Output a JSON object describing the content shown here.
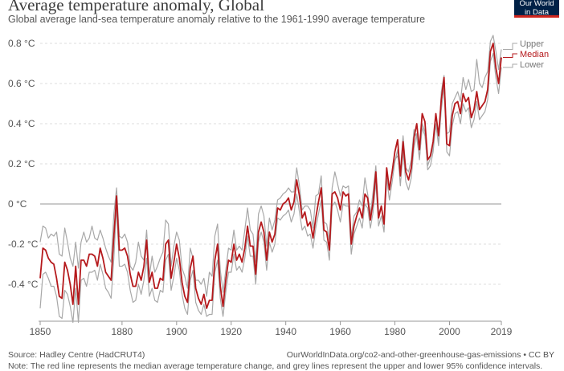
{
  "title": "Average temperature anomaly, Global",
  "subtitle": "Global average land-sea temperature anomaly relative to the 1961-1990 average temperature",
  "logo": {
    "line1": "Our World",
    "line2": "in Data"
  },
  "source": "Source: Hadley Centre (HadCRUT4)",
  "credit": "OurWorldInData.org/co2-and-other-greenhouse-gas-emissions • CC BY",
  "note": "Note: The red line represents the median average temperature change, and grey lines represent the upper and lower 95% confidence intervals.",
  "colors": {
    "median": "#b5191c",
    "bounds": "#a8a8a8",
    "grid": "#dddddd",
    "zero": "#aaaaaa"
  },
  "chart_data": {
    "type": "line",
    "title": "Average temperature anomaly, Global",
    "xlim": [
      1850,
      2019
    ],
    "ylim": [
      -0.6,
      0.85
    ],
    "x_ticks": [
      1850,
      1880,
      1900,
      1920,
      1940,
      1960,
      1980,
      2000,
      2019
    ],
    "y_ticks": [
      {
        "value": -0.4,
        "label": "-0.4 °C"
      },
      {
        "value": -0.2,
        "label": "-0.2 °C"
      },
      {
        "value": 0,
        "label": "0 °C"
      },
      {
        "value": 0.2,
        "label": "0.2 °C"
      },
      {
        "value": 0.4,
        "label": "0.4 °C"
      },
      {
        "value": 0.6,
        "label": "0.6 °C"
      },
      {
        "value": 0.8,
        "label": "0.8 °C"
      }
    ],
    "grid": true,
    "legend": "right-inline",
    "x": [
      1850,
      1851,
      1852,
      1853,
      1854,
      1855,
      1856,
      1857,
      1858,
      1859,
      1860,
      1861,
      1862,
      1863,
      1864,
      1865,
      1866,
      1867,
      1868,
      1869,
      1870,
      1871,
      1872,
      1873,
      1874,
      1875,
      1876,
      1877,
      1878,
      1879,
      1880,
      1881,
      1882,
      1883,
      1884,
      1885,
      1886,
      1887,
      1888,
      1889,
      1890,
      1891,
      1892,
      1893,
      1894,
      1895,
      1896,
      1897,
      1898,
      1899,
      1900,
      1901,
      1902,
      1903,
      1904,
      1905,
      1906,
      1907,
      1908,
      1909,
      1910,
      1911,
      1912,
      1913,
      1914,
      1915,
      1916,
      1917,
      1918,
      1919,
      1920,
      1921,
      1922,
      1923,
      1924,
      1925,
      1926,
      1927,
      1928,
      1929,
      1930,
      1931,
      1932,
      1933,
      1934,
      1935,
      1936,
      1937,
      1938,
      1939,
      1940,
      1941,
      1942,
      1943,
      1944,
      1945,
      1946,
      1947,
      1948,
      1949,
      1950,
      1951,
      1952,
      1953,
      1954,
      1955,
      1956,
      1957,
      1958,
      1959,
      1960,
      1961,
      1962,
      1963,
      1964,
      1965,
      1966,
      1967,
      1968,
      1969,
      1970,
      1971,
      1972,
      1973,
      1974,
      1975,
      1976,
      1977,
      1978,
      1979,
      1980,
      1981,
      1982,
      1983,
      1984,
      1985,
      1986,
      1987,
      1988,
      1989,
      1990,
      1991,
      1992,
      1993,
      1994,
      1995,
      1996,
      1997,
      1998,
      1999,
      2000,
      2001,
      2002,
      2003,
      2004,
      2005,
      2006,
      2007,
      2008,
      2009,
      2010,
      2011,
      2012,
      2013,
      2014,
      2015,
      2016,
      2017,
      2018,
      2019
    ],
    "series": [
      {
        "name": "Upper",
        "values": [
          -0.19,
          -0.11,
          -0.12,
          -0.17,
          -0.15,
          -0.16,
          -0.14,
          -0.25,
          -0.26,
          -0.12,
          -0.19,
          -0.27,
          -0.31,
          -0.19,
          -0.32,
          -0.19,
          -0.14,
          -0.19,
          -0.17,
          -0.11,
          -0.17,
          -0.18,
          -0.13,
          -0.17,
          -0.22,
          -0.26,
          -0.29,
          -0.05,
          0.08,
          -0.16,
          -0.17,
          -0.15,
          -0.19,
          -0.31,
          -0.33,
          -0.29,
          -0.19,
          -0.26,
          -0.28,
          -0.13,
          -0.36,
          -0.26,
          -0.34,
          -0.31,
          -0.27,
          -0.24,
          -0.08,
          -0.1,
          -0.31,
          -0.21,
          -0.14,
          -0.18,
          -0.32,
          -0.36,
          -0.42,
          -0.22,
          -0.27,
          -0.38,
          -0.38,
          -0.4,
          -0.37,
          -0.46,
          -0.34,
          -0.36,
          -0.16,
          -0.1,
          -0.33,
          -0.44,
          -0.33,
          -0.22,
          -0.23,
          -0.13,
          -0.23,
          -0.21,
          -0.23,
          -0.13,
          -0.02,
          -0.13,
          -0.15,
          -0.29,
          -0.05,
          -0.01,
          -0.06,
          -0.21,
          -0.07,
          -0.13,
          -0.08,
          0.02,
          0.03,
          0.05,
          0.06,
          0.08,
          0.06,
          0.06,
          0.18,
          0.09,
          -0.03,
          -0.01,
          -0.01,
          -0.03,
          -0.12,
          0.04,
          0.05,
          0.14,
          -0.09,
          -0.1,
          -0.18,
          0.08,
          0.16,
          0.1,
          0.04,
          0.09,
          0.08,
          0.09,
          -0.17,
          -0.06,
          -0.04,
          0.02,
          -0.01,
          0.13,
          0.05,
          -0.05,
          0.06,
          0.19,
          -0.05,
          -0.01,
          -0.09,
          0.11,
          0.09,
          0.15,
          0.22,
          0.24,
          0.17,
          0.34,
          0.18,
          0.16,
          0.22,
          0.37,
          0.33,
          0.23,
          0.38,
          0.34,
          0.19,
          0.23,
          0.28,
          0.4,
          0.3,
          0.56,
          0.64,
          0.35,
          0.36,
          0.5,
          0.53,
          0.56,
          0.51,
          0.63,
          0.57,
          0.62,
          0.56,
          0.57,
          0.72,
          0.6,
          0.58,
          0.63,
          0.66,
          0.81,
          0.84,
          0.76,
          0.67,
          0.77
        ]
      },
      {
        "name": "Median",
        "values": [
          -0.37,
          -0.22,
          -0.23,
          -0.27,
          -0.29,
          -0.3,
          -0.37,
          -0.46,
          -0.47,
          -0.29,
          -0.33,
          -0.4,
          -0.5,
          -0.31,
          -0.5,
          -0.28,
          -0.28,
          -0.31,
          -0.25,
          -0.25,
          -0.26,
          -0.31,
          -0.22,
          -0.27,
          -0.34,
          -0.36,
          -0.38,
          -0.16,
          0.04,
          -0.23,
          -0.23,
          -0.22,
          -0.26,
          -0.35,
          -0.41,
          -0.41,
          -0.34,
          -0.38,
          -0.31,
          -0.18,
          -0.39,
          -0.34,
          -0.42,
          -0.42,
          -0.37,
          -0.38,
          -0.2,
          -0.18,
          -0.37,
          -0.29,
          -0.2,
          -0.27,
          -0.39,
          -0.46,
          -0.49,
          -0.32,
          -0.26,
          -0.42,
          -0.47,
          -0.5,
          -0.45,
          -0.52,
          -0.48,
          -0.48,
          -0.28,
          -0.2,
          -0.41,
          -0.51,
          -0.38,
          -0.28,
          -0.29,
          -0.2,
          -0.28,
          -0.25,
          -0.29,
          -0.22,
          -0.11,
          -0.21,
          -0.21,
          -0.35,
          -0.14,
          -0.09,
          -0.14,
          -0.28,
          -0.14,
          -0.19,
          -0.15,
          -0.02,
          -0.03,
          0.0,
          0.01,
          0.03,
          -0.03,
          0.01,
          0.12,
          0.04,
          -0.07,
          -0.04,
          -0.11,
          -0.09,
          -0.17,
          -0.07,
          0.01,
          0.08,
          -0.13,
          -0.14,
          -0.23,
          0.05,
          0.06,
          0.03,
          -0.03,
          0.06,
          0.04,
          0.05,
          -0.2,
          -0.11,
          -0.06,
          -0.02,
          -0.07,
          0.05,
          0.03,
          -0.08,
          0.01,
          0.16,
          -0.07,
          -0.01,
          -0.1,
          0.18,
          0.07,
          0.16,
          0.26,
          0.32,
          0.14,
          0.31,
          0.16,
          0.12,
          0.18,
          0.33,
          0.4,
          0.27,
          0.45,
          0.41,
          0.22,
          0.24,
          0.31,
          0.45,
          0.34,
          0.52,
          0.63,
          0.3,
          0.29,
          0.44,
          0.5,
          0.51,
          0.45,
          0.55,
          0.51,
          0.53,
          0.43,
          0.47,
          0.56,
          0.47,
          0.49,
          0.51,
          0.57,
          0.76,
          0.8,
          0.68,
          0.6,
          0.73
        ]
      },
      {
        "name": "Lower",
        "values": [
          -0.52,
          -0.35,
          -0.34,
          -0.37,
          -0.41,
          -0.41,
          -0.46,
          -0.56,
          -0.57,
          -0.43,
          -0.45,
          -0.51,
          -0.59,
          -0.42,
          -0.59,
          -0.38,
          -0.37,
          -0.41,
          -0.34,
          -0.34,
          -0.33,
          -0.38,
          -0.3,
          -0.35,
          -0.42,
          -0.44,
          -0.47,
          -0.27,
          -0.01,
          -0.31,
          -0.31,
          -0.3,
          -0.34,
          -0.43,
          -0.49,
          -0.48,
          -0.4,
          -0.45,
          -0.38,
          -0.27,
          -0.46,
          -0.42,
          -0.48,
          -0.49,
          -0.43,
          -0.44,
          -0.28,
          -0.25,
          -0.43,
          -0.36,
          -0.27,
          -0.33,
          -0.45,
          -0.52,
          -0.55,
          -0.38,
          -0.33,
          -0.49,
          -0.53,
          -0.55,
          -0.5,
          -0.56,
          -0.55,
          -0.55,
          -0.34,
          -0.28,
          -0.47,
          -0.56,
          -0.44,
          -0.34,
          -0.34,
          -0.25,
          -0.33,
          -0.31,
          -0.34,
          -0.27,
          -0.16,
          -0.26,
          -0.26,
          -0.4,
          -0.19,
          -0.14,
          -0.19,
          -0.33,
          -0.19,
          -0.24,
          -0.2,
          -0.07,
          -0.08,
          -0.06,
          -0.05,
          -0.03,
          -0.09,
          -0.05,
          0.05,
          -0.04,
          -0.13,
          -0.11,
          -0.16,
          -0.15,
          -0.22,
          -0.12,
          -0.05,
          0.02,
          -0.18,
          -0.19,
          -0.28,
          -0.01,
          0.01,
          -0.03,
          -0.09,
          0.0,
          -0.01,
          -0.01,
          -0.25,
          -0.15,
          -0.11,
          -0.07,
          -0.12,
          0.0,
          -0.02,
          -0.12,
          -0.04,
          0.11,
          -0.11,
          -0.06,
          -0.14,
          0.13,
          0.02,
          0.11,
          0.21,
          0.27,
          0.09,
          0.26,
          0.11,
          0.07,
          0.13,
          0.28,
          0.35,
          0.22,
          0.4,
          0.36,
          0.17,
          0.19,
          0.26,
          0.4,
          0.29,
          0.47,
          0.58,
          0.26,
          0.24,
          0.39,
          0.45,
          0.46,
          0.4,
          0.5,
          0.46,
          0.48,
          0.38,
          0.42,
          0.51,
          0.42,
          0.44,
          0.46,
          0.52,
          0.71,
          0.75,
          0.63,
          0.55,
          0.68
        ]
      }
    ]
  }
}
